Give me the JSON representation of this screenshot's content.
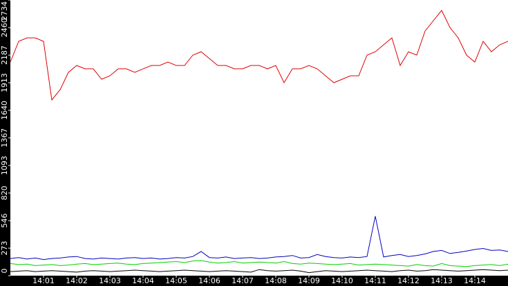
{
  "chart_data": {
    "type": "line",
    "x": [
      840,
      840.25,
      840.5,
      840.75,
      841,
      841.25,
      841.5,
      841.75,
      842,
      842.25,
      842.5,
      842.75,
      843,
      843.25,
      843.5,
      843.75,
      844,
      844.25,
      844.5,
      844.75,
      845,
      845.25,
      845.5,
      845.75,
      846,
      846.25,
      846.5,
      846.75,
      847,
      847.25,
      847.5,
      847.75,
      848,
      848.25,
      848.5,
      848.75,
      849,
      849.25,
      849.5,
      849.75,
      850,
      850.25,
      850.5,
      850.75,
      851,
      851.25,
      851.5,
      851.75,
      852,
      852.25,
      852.5,
      852.75,
      853,
      853.25,
      853.5,
      853.75,
      854,
      854.25,
      854.5,
      854.75,
      855
    ],
    "series": [
      {
        "color": "#e00000",
        "values": [
          2119,
          2324,
          2358,
          2358,
          2324,
          1743,
          1845,
          2016,
          2085,
          2051,
          2051,
          1948,
          1982,
          2051,
          2051,
          2016,
          2051,
          2085,
          2085,
          2119,
          2085,
          2085,
          2187,
          2221,
          2153,
          2085,
          2085,
          2051,
          2051,
          2085,
          2085,
          2051,
          2085,
          1914,
          2051,
          2051,
          2085,
          2051,
          1982,
          1914,
          1948,
          1982,
          1982,
          2187,
          2221,
          2290,
          2358,
          2085,
          2221,
          2187,
          2426,
          2529,
          2631,
          2461,
          2358,
          2187,
          2119,
          2324,
          2221,
          2290,
          2324
        ]
      },
      {
        "color": "#0000c0",
        "values": [
          170,
          180,
          165,
          175,
          160,
          170,
          175,
          185,
          190,
          170,
          165,
          175,
          170,
          165,
          175,
          180,
          170,
          175,
          165,
          170,
          180,
          175,
          190,
          240,
          180,
          175,
          185,
          170,
          175,
          180,
          170,
          175,
          185,
          190,
          200,
          175,
          180,
          210,
          190,
          180,
          175,
          185,
          180,
          190,
          590,
          185,
          200,
          210,
          190,
          200,
          215,
          240,
          250,
          220,
          230,
          245,
          260,
          270,
          250,
          255,
          240
        ]
      },
      {
        "color": "#00d000",
        "values": [
          120,
          110,
          115,
          100,
          105,
          110,
          100,
          105,
          115,
          120,
          110,
          115,
          120,
          125,
          115,
          110,
          120,
          125,
          130,
          135,
          140,
          130,
          145,
          150,
          135,
          125,
          130,
          140,
          125,
          130,
          135,
          130,
          125,
          140,
          120,
          115,
          125,
          120,
          115,
          110,
          115,
          120,
          105,
          110,
          115,
          110,
          105,
          100,
          95,
          110,
          100,
          95,
          120,
          100,
          95,
          90,
          100,
          105,
          110,
          100,
          115
        ]
      },
      {
        "color": "#000000",
        "values": [
          40,
          45,
          50,
          40,
          45,
          50,
          45,
          40,
          35,
          45,
          50,
          45,
          40,
          45,
          50,
          55,
          50,
          45,
          40,
          45,
          50,
          55,
          50,
          45,
          40,
          45,
          50,
          45,
          40,
          35,
          60,
          50,
          45,
          50,
          55,
          45,
          30,
          40,
          50,
          45,
          40,
          45,
          50,
          55,
          50,
          45,
          40,
          50,
          55,
          45,
          50,
          60,
          55,
          50,
          45,
          50,
          55,
          60,
          55,
          50,
          55
        ]
      }
    ],
    "xlim": [
      840,
      855
    ],
    "xticks": [
      {
        "value": 841,
        "label": "14:01"
      },
      {
        "value": 842,
        "label": "14:02"
      },
      {
        "value": 843,
        "label": "14:03"
      },
      {
        "value": 844,
        "label": "14:04"
      },
      {
        "value": 845,
        "label": "14:05"
      },
      {
        "value": 846,
        "label": "14:06"
      },
      {
        "value": 847,
        "label": "14:07"
      },
      {
        "value": 848,
        "label": "14:08"
      },
      {
        "value": 849,
        "label": "14:09"
      },
      {
        "value": 850,
        "label": "14:10"
      },
      {
        "value": 851,
        "label": "14:11"
      },
      {
        "value": 852,
        "label": "14:12"
      },
      {
        "value": 853,
        "label": "14:13"
      },
      {
        "value": 854,
        "label": "14:14"
      }
    ],
    "ylim": [
      0,
      2734
    ],
    "yticks": [
      0,
      273,
      546,
      820,
      1093,
      1367,
      1640,
      1913,
      2187,
      2460,
      2734
    ]
  }
}
